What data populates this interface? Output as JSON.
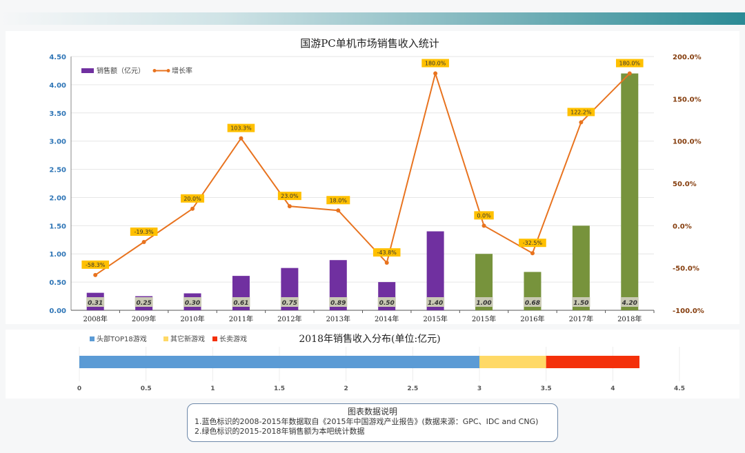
{
  "chart_data": [
    {
      "type": "bar+line",
      "title": "国游PC单机市场销售收入统计",
      "categories": [
        "2008年",
        "2009年",
        "2010年",
        "2011年",
        "2012年",
        "2013年",
        "2014年",
        "2015年",
        "2015年",
        "2016年",
        "2017年",
        "2018年"
      ],
      "series": [
        {
          "name": "销售额（亿元）",
          "type": "bar",
          "axis": "left",
          "values": [
            0.31,
            0.25,
            0.3,
            0.61,
            0.75,
            0.89,
            0.5,
            1.4,
            1.0,
            0.68,
            1.5,
            4.2
          ],
          "data_labels": [
            "0.31",
            "0.25",
            "0.30",
            "0.61",
            "0.75",
            "0.89",
            "0.50",
            "1.40",
            "1.00",
            "0.68",
            "1.50",
            "4.20"
          ],
          "colors": [
            "#7030a0",
            "#7030a0",
            "#7030a0",
            "#7030a0",
            "#7030a0",
            "#7030a0",
            "#7030a0",
            "#7030a0",
            "#77933c",
            "#77933c",
            "#77933c",
            "#77933c"
          ]
        },
        {
          "name": "增长率",
          "type": "line",
          "axis": "right",
          "values": [
            -58.3,
            -19.3,
            20.0,
            103.3,
            23.0,
            18.0,
            -43.8,
            180.0,
            0.0,
            -32.5,
            122.2,
            180.0
          ],
          "data_labels": [
            "-58.3%",
            "-19.3%",
            "20.0%",
            "103.3%",
            "23.0%",
            "18.0%",
            "-43.8%",
            "180.0%",
            "0.0%",
            "-32.5%",
            "122.2%",
            "180.0%"
          ],
          "color": "#e8731f"
        }
      ],
      "left_axis": {
        "ylim": [
          0,
          4.5
        ],
        "ticks": [
          "0.00",
          "0.50",
          "1.00",
          "1.50",
          "2.00",
          "2.50",
          "3.00",
          "3.50",
          "4.00",
          "4.50"
        ]
      },
      "right_axis": {
        "ylim": [
          -100,
          200
        ],
        "ticks": [
          "-100.0%",
          "-50.0%",
          "0.0%",
          "50.0%",
          "100.0%",
          "150.0%",
          "200.0%"
        ]
      },
      "legend_placement": "top-left",
      "grid": true
    },
    {
      "type": "stacked-bar-horizontal",
      "title": "2018年销售收入分布(单位:亿元)",
      "series": [
        {
          "name": "头部TOP18游戏",
          "value": 3.0,
          "color": "#5b9bd5"
        },
        {
          "name": "其它新游戏",
          "value": 0.5,
          "color": "#ffd966"
        },
        {
          "name": "长卖游戏",
          "value": 0.7,
          "color": "#f4300a"
        }
      ],
      "xlim": [
        0,
        4.5
      ],
      "ticks": [
        "0",
        "0.5",
        "1",
        "1.5",
        "2",
        "2.5",
        "3",
        "3.5",
        "4",
        "4.5"
      ],
      "legend_placement": "top-left"
    }
  ],
  "note": {
    "title": "图表数据说明",
    "lines": [
      "1.蓝色标识的2008-2015年数据取自《2015年中国游戏产业报告》(数据来源：GPC、IDC and CNG)",
      "2.绿色标识的2015-2018年销售额为本吧统计数据"
    ]
  }
}
